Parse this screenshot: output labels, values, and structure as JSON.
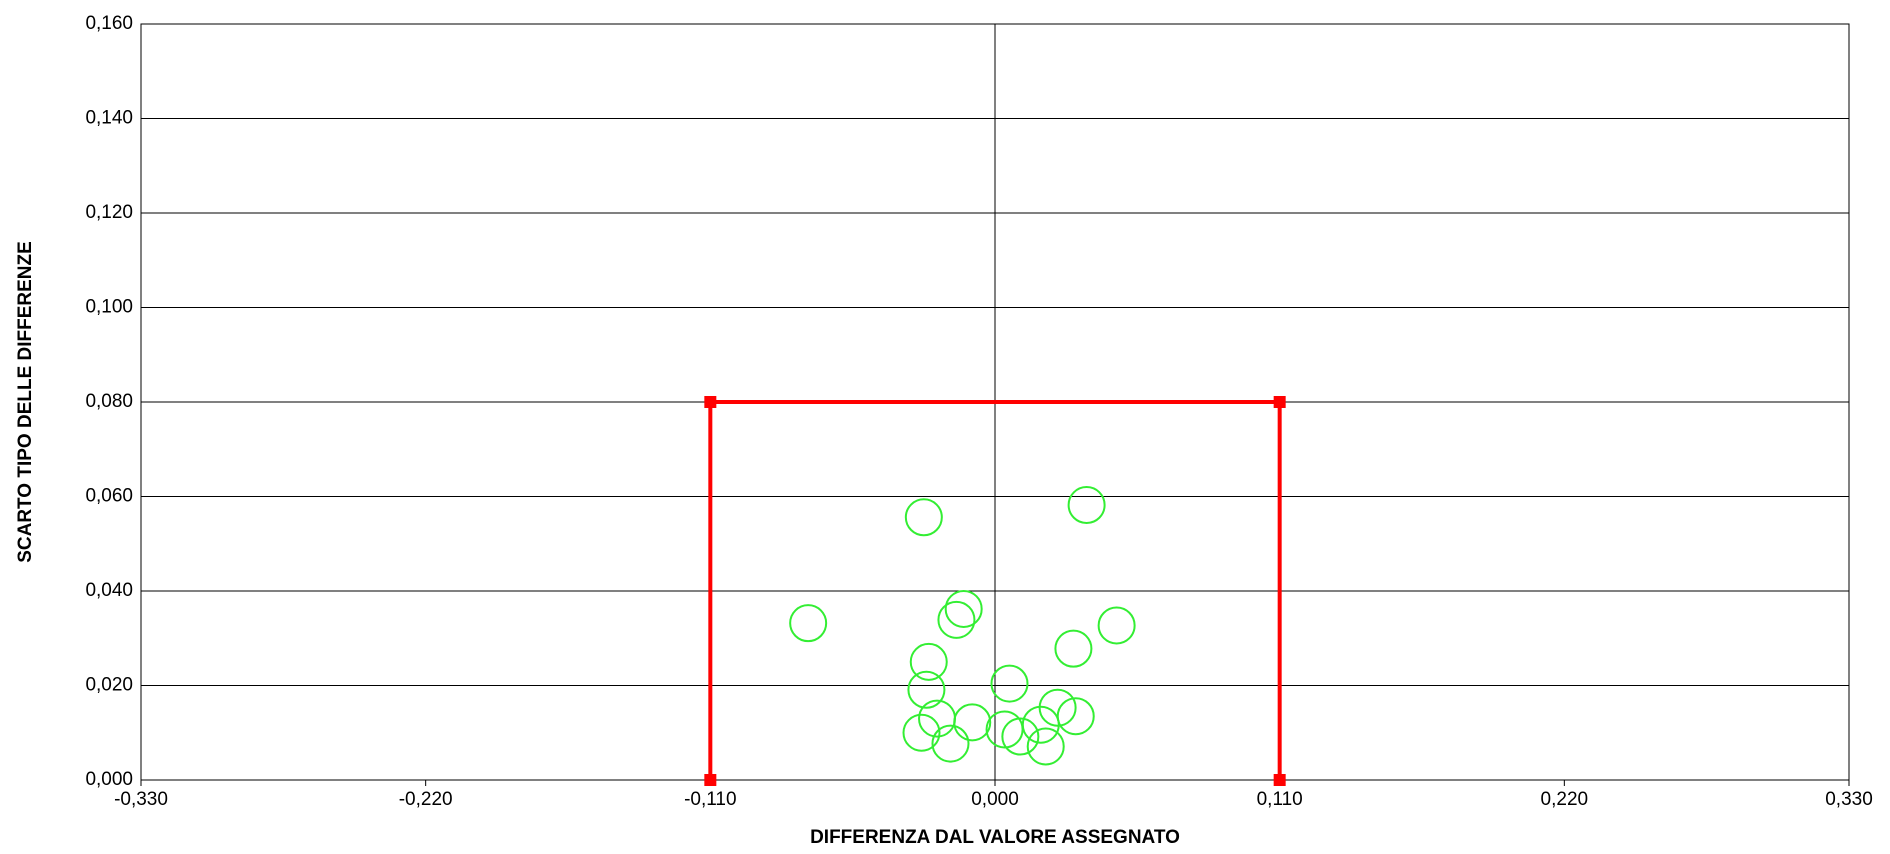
{
  "chart_data": {
    "type": "scatter",
    "x_label": "DIFFERENZA DAL VALORE ASSEGNATO",
    "y_label": "SCARTO TIPO DELLE DIFFERENZE",
    "xlim": [
      -0.33,
      0.33
    ],
    "ylim": [
      0,
      0.16
    ],
    "xticks": [
      {
        "value": -0.33,
        "label": "-0,330"
      },
      {
        "value": -0.22,
        "label": "-0,220"
      },
      {
        "value": -0.11,
        "label": "-0,110"
      },
      {
        "value": 0,
        "label": "0,000"
      },
      {
        "value": 0.11,
        "label": "0,110"
      },
      {
        "value": 0.22,
        "label": "0,220"
      },
      {
        "value": 0.33,
        "label": "0,330"
      }
    ],
    "yticks": [
      {
        "value": 0,
        "label": "0,000"
      },
      {
        "value": 0.02,
        "label": "0,020"
      },
      {
        "value": 0.04,
        "label": "0,040"
      },
      {
        "value": 0.06,
        "label": "0,060"
      },
      {
        "value": 0.08,
        "label": "0,080"
      },
      {
        "value": 0.1,
        "label": "0,100"
      },
      {
        "value": 0.12,
        "label": "0,120"
      },
      {
        "value": 0.14,
        "label": "0,140"
      },
      {
        "value": 0.16,
        "label": "0,160"
      }
    ],
    "grid": true,
    "series": [
      {
        "color": "#33ee33",
        "marker": "circle",
        "x": [
          -0.0275,
          0.0354,
          -0.0722,
          -0.0121,
          -0.0149,
          0.047,
          0.0303,
          -0.0256,
          0.0056,
          -0.0265,
          0.0242,
          -0.0224,
          -0.0088,
          0.0312,
          0.0177,
          0.0037,
          -0.0284,
          0.0098,
          -0.0172,
          0.0196
        ],
        "values": [
          0.0556,
          0.0582,
          0.0332,
          0.0362,
          0.0339,
          0.0327,
          0.0278,
          0.025,
          0.0204,
          0.0191,
          0.0153,
          0.013,
          0.0122,
          0.0135,
          0.0117,
          0.0107,
          0.01,
          0.0092,
          0.0077,
          0.0071
        ]
      },
      {
        "color": "#ff0000",
        "marker": "square",
        "line": true,
        "x": [
          -0.11,
          -0.11,
          0.11,
          0.11
        ],
        "values": [
          0,
          0.08,
          0.08,
          0
        ]
      }
    ]
  }
}
